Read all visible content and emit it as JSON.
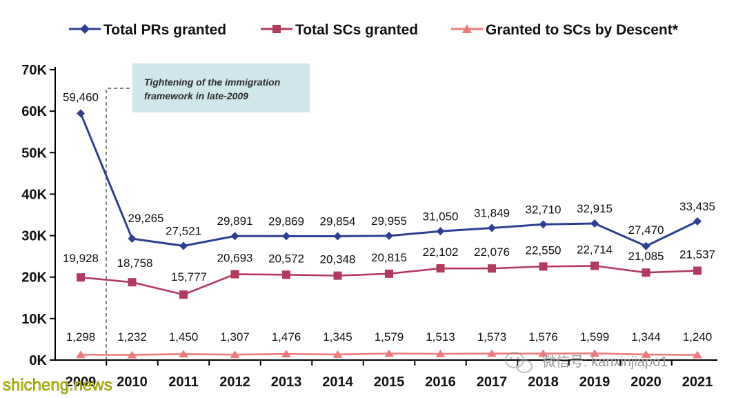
{
  "chart_data": {
    "type": "line",
    "title": "",
    "xlabel": "",
    "ylabel": "",
    "x": [
      "2009",
      "2010",
      "2011",
      "2012",
      "2013",
      "2014",
      "2015",
      "2016",
      "2017",
      "2018",
      "2019",
      "2020",
      "2021"
    ],
    "ylim": [
      0,
      70000
    ],
    "yticks": [
      0,
      10000,
      20000,
      30000,
      40000,
      50000,
      60000,
      70000
    ],
    "ytick_labels": [
      "0K",
      "10K",
      "20K",
      "30K",
      "40K",
      "50K",
      "60K",
      "70K"
    ],
    "grid": false,
    "legend_position": "top",
    "series": [
      {
        "name": "Total PRs granted",
        "color": "#2E3F93",
        "marker": "diamond",
        "values": [
          59460,
          29265,
          27521,
          29891,
          29869,
          29854,
          29955,
          31050,
          31849,
          32710,
          32915,
          27470,
          33435
        ],
        "labels": [
          "59,460",
          "29,265",
          "27,521",
          "29,891",
          "29,869",
          "29,854",
          "29,955",
          "31,050",
          "31,849",
          "32,710",
          "32,915",
          "27,470",
          "33,435"
        ]
      },
      {
        "name": "Total SCs granted",
        "color": "#B33A5E",
        "marker": "square",
        "values": [
          19928,
          18758,
          15777,
          20693,
          20572,
          20348,
          20815,
          22102,
          22076,
          22550,
          22714,
          21085,
          21537
        ],
        "labels": [
          "19,928",
          "18,758",
          "15,777",
          "20,693",
          "20,572",
          "20,348",
          "20,815",
          "22,102",
          "22,076",
          "22,550",
          "22,714",
          "21,085",
          "21,537"
        ]
      },
      {
        "name": "Granted to SCs by Descent*",
        "color": "#EE7B7B",
        "marker": "triangle",
        "values": [
          1298,
          1232,
          1450,
          1307,
          1476,
          1345,
          1579,
          1513,
          1573,
          1576,
          1599,
          1344,
          1240
        ],
        "labels": [
          "1,298",
          "1,232",
          "1,450",
          "1,307",
          "1,476",
          "1,345",
          "1,579",
          "1,513",
          "1,573",
          "1,576",
          "1,599",
          "1,344",
          "1,240"
        ]
      }
    ],
    "annotation": {
      "line1": "Tightening of the immigration",
      "line2": "framework in late-2009",
      "fill": "#CFE6EA"
    }
  },
  "watermark": {
    "wechat_text": "微信号: kanxinjiapo1",
    "site_text": "shicheng.news"
  }
}
